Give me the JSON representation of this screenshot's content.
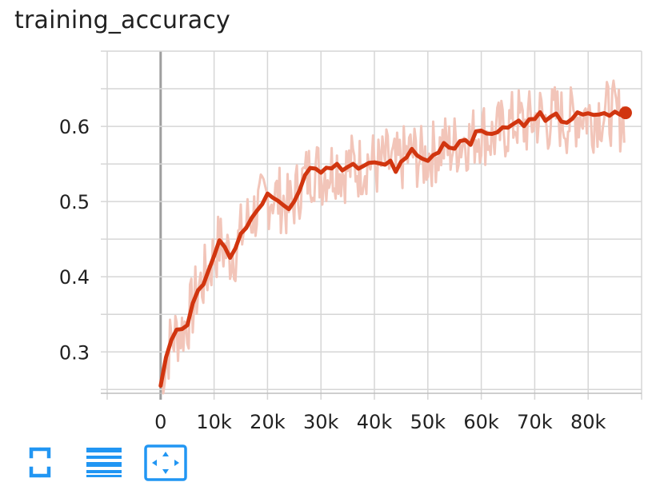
{
  "chart_title": "training_accuracy",
  "chart_data": {
    "type": "line",
    "title": "training_accuracy",
    "xlabel": "",
    "ylabel": "",
    "x_ticks": [
      "0",
      "10k",
      "20k",
      "30k",
      "40k",
      "50k",
      "60k",
      "70k",
      "80k"
    ],
    "y_ticks": [
      "0.3",
      "0.4",
      "0.5",
      "0.6"
    ],
    "xlim": [
      -10000,
      90000
    ],
    "ylim": [
      0.245,
      0.7
    ],
    "grid": true,
    "legend": "none",
    "series": [
      {
        "role": "smoothed",
        "color": "#d1350f",
        "x": [
          0,
          1000,
          2000,
          3000,
          4000,
          5000,
          6000,
          7000,
          8000,
          9000,
          10000,
          11000,
          12000,
          13000,
          14000,
          15000,
          16000,
          17000,
          18000,
          19000,
          20000,
          21000,
          22000,
          23000,
          24000,
          25000,
          26000,
          27000,
          28000,
          29000,
          30000,
          31000,
          32000,
          33000,
          34000,
          35000,
          36000,
          37000,
          38000,
          39000,
          40000,
          41000,
          42000,
          43000,
          44000,
          45000,
          46000,
          47000,
          48000,
          49000,
          50000,
          51000,
          52000,
          53000,
          54000,
          55000,
          56000,
          57000,
          58000,
          59000,
          60000,
          61000,
          62000,
          63000,
          64000,
          65000,
          66000,
          67000,
          68000,
          69000,
          70000,
          71000,
          72000,
          73000,
          74000,
          75000,
          76000,
          77000,
          78000,
          79000,
          80000,
          81000,
          82000,
          83000,
          84000,
          85000,
          86000,
          87000
        ],
        "y": [
          0.255,
          0.29,
          0.315,
          0.325,
          0.33,
          0.34,
          0.36,
          0.385,
          0.395,
          0.41,
          0.43,
          0.445,
          0.435,
          0.43,
          0.435,
          0.455,
          0.47,
          0.48,
          0.49,
          0.495,
          0.505,
          0.51,
          0.505,
          0.5,
          0.49,
          0.505,
          0.52,
          0.53,
          0.54,
          0.545,
          0.535,
          0.54,
          0.545,
          0.55,
          0.54,
          0.545,
          0.55,
          0.545,
          0.55,
          0.555,
          0.55,
          0.545,
          0.555,
          0.55,
          0.545,
          0.555,
          0.56,
          0.565,
          0.56,
          0.555,
          0.56,
          0.565,
          0.57,
          0.575,
          0.57,
          0.575,
          0.58,
          0.585,
          0.58,
          0.59,
          0.595,
          0.59,
          0.585,
          0.59,
          0.595,
          0.6,
          0.605,
          0.61,
          0.6,
          0.605,
          0.61,
          0.615,
          0.605,
          0.61,
          0.615,
          0.61,
          0.605,
          0.61,
          0.615,
          0.62,
          0.615,
          0.61,
          0.62,
          0.615,
          0.62,
          0.615,
          0.61,
          0.62
        ]
      }
    ],
    "raw_series_color": "#f2c5b9",
    "endpoint": {
      "x": 87000,
      "y": 0.618,
      "color": "#d1350f"
    }
  },
  "toolbar": {
    "buttons": [
      {
        "name": "fullscreen-toggle-icon",
        "color": "#2196f3"
      },
      {
        "name": "toggle-log-scale-icon",
        "color": "#2196f3"
      },
      {
        "name": "fit-domain-icon",
        "color": "#2196f3"
      }
    ]
  }
}
